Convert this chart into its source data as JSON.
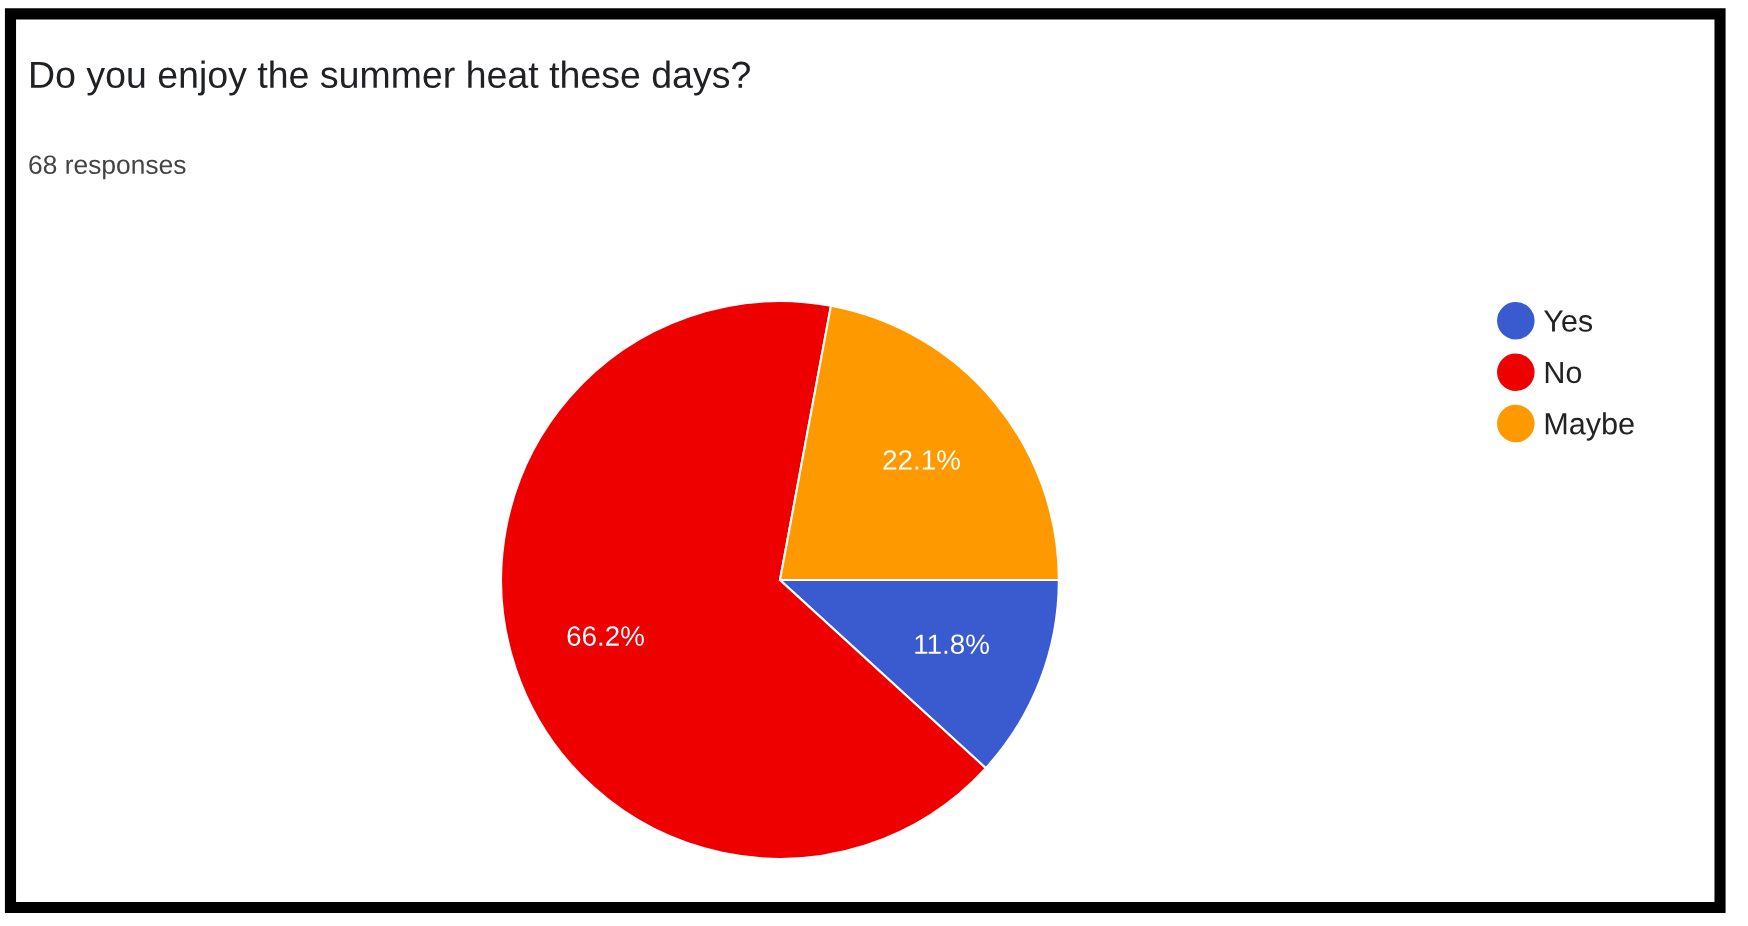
{
  "chart_data": {
    "type": "pie",
    "title": "Do you enjoy the summer heat these days?",
    "subtitle": "68 responses",
    "categories": [
      "Yes",
      "No",
      "Maybe"
    ],
    "values": [
      11.8,
      66.2,
      22.1
    ],
    "colors": [
      "#3a5bd0",
      "#ee0000",
      "#ff9900"
    ],
    "value_labels": [
      "11.8%",
      "66.2%",
      "22.1%"
    ],
    "legend": "right"
  }
}
